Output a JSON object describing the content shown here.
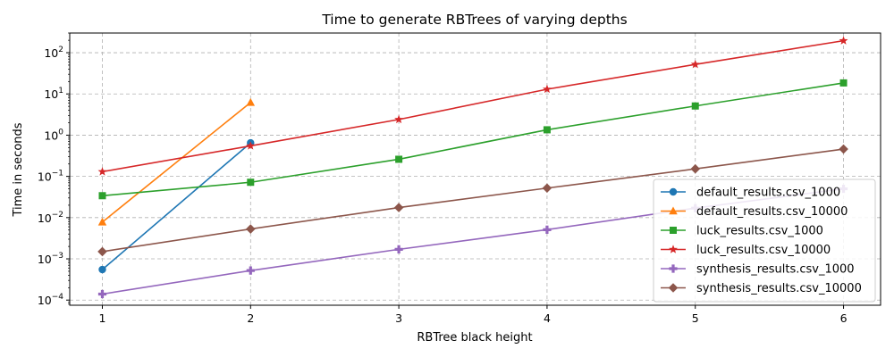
{
  "chart_data": {
    "type": "line",
    "title": "Time to generate RBTrees of varying depths",
    "xlabel": "RBTree black height",
    "ylabel": "Time in seconds",
    "xlim": [
      0.78,
      6.25
    ],
    "xticks": [
      "1",
      "2",
      "3",
      "4",
      "5",
      "6"
    ],
    "ylim": [
      7.5e-05,
      300
    ],
    "yscale": "log",
    "yticks": [
      {
        "value": 0.0001,
        "mantissa": "10",
        "exp": "−4"
      },
      {
        "value": 0.001,
        "mantissa": "10",
        "exp": "−3"
      },
      {
        "value": 0.01,
        "mantissa": "10",
        "exp": "−2"
      },
      {
        "value": 0.1,
        "mantissa": "10",
        "exp": "−1"
      },
      {
        "value": 1,
        "mantissa": "10",
        "exp": "0"
      },
      {
        "value": 10,
        "mantissa": "10",
        "exp": "1"
      },
      {
        "value": 100,
        "mantissa": "10",
        "exp": "2"
      }
    ],
    "grid": true,
    "legend_position": "lower-right",
    "series": [
      {
        "name": "default_results.csv_1000",
        "color": "#1f77b4",
        "marker": "circle",
        "x": [
          1,
          2
        ],
        "y": [
          0.00055,
          0.65
        ]
      },
      {
        "name": "default_results.csv_10000",
        "color": "#ff7f0e",
        "marker": "triangle",
        "x": [
          1,
          2
        ],
        "y": [
          0.0078,
          6.2
        ]
      },
      {
        "name": "luck_results.csv_1000",
        "color": "#2ca02c",
        "marker": "square",
        "x": [
          1,
          2,
          3,
          4,
          5,
          6
        ],
        "y": [
          0.034,
          0.072,
          0.26,
          1.35,
          5.1,
          18.5
        ]
      },
      {
        "name": "luck_results.csv_10000",
        "color": "#d62728",
        "marker": "star",
        "x": [
          1,
          2,
          3,
          4,
          5,
          6
        ],
        "y": [
          0.13,
          0.55,
          2.4,
          13,
          52,
          195
        ]
      },
      {
        "name": "synthesis_results.csv_1000",
        "color": "#9467bd",
        "marker": "plus",
        "x": [
          1,
          2,
          3,
          4,
          5,
          6
        ],
        "y": [
          0.00014,
          0.00052,
          0.0017,
          0.0051,
          0.017,
          0.05
        ]
      },
      {
        "name": "synthesis_results.csv_10000",
        "color": "#8c564b",
        "marker": "diamond",
        "x": [
          1,
          2,
          3,
          4,
          5,
          6
        ],
        "y": [
          0.0015,
          0.0053,
          0.0175,
          0.052,
          0.152,
          0.46
        ]
      }
    ]
  }
}
